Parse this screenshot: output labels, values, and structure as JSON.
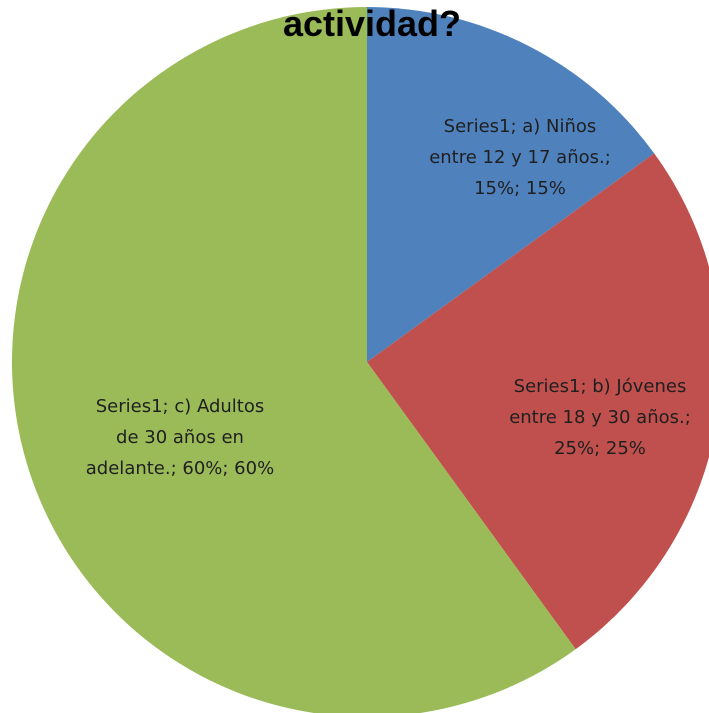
{
  "chart_data": {
    "type": "pie",
    "title": "actividad?",
    "series_name": "Series1",
    "categories": [
      "a) Niños entre 12 y 17 años.",
      "b) Jóvenes entre 18 y 30 años.",
      "c) Adultos de 30 años en adelante."
    ],
    "values": [
      15,
      25,
      60
    ],
    "colors": [
      "#4f81bd",
      "#c0504d",
      "#9bbb59"
    ],
    "data_labels": [
      [
        "Series1; a) Niños",
        "entre 12 y 17 años.;",
        "15%; 15%"
      ],
      [
        "Series1; b) Jóvenes",
        "entre 18 y 30 años.;",
        "25%; 25%"
      ],
      [
        "Series1; c) Adultos",
        "de 30 años en",
        "adelante.; 60%; 60%"
      ]
    ]
  }
}
